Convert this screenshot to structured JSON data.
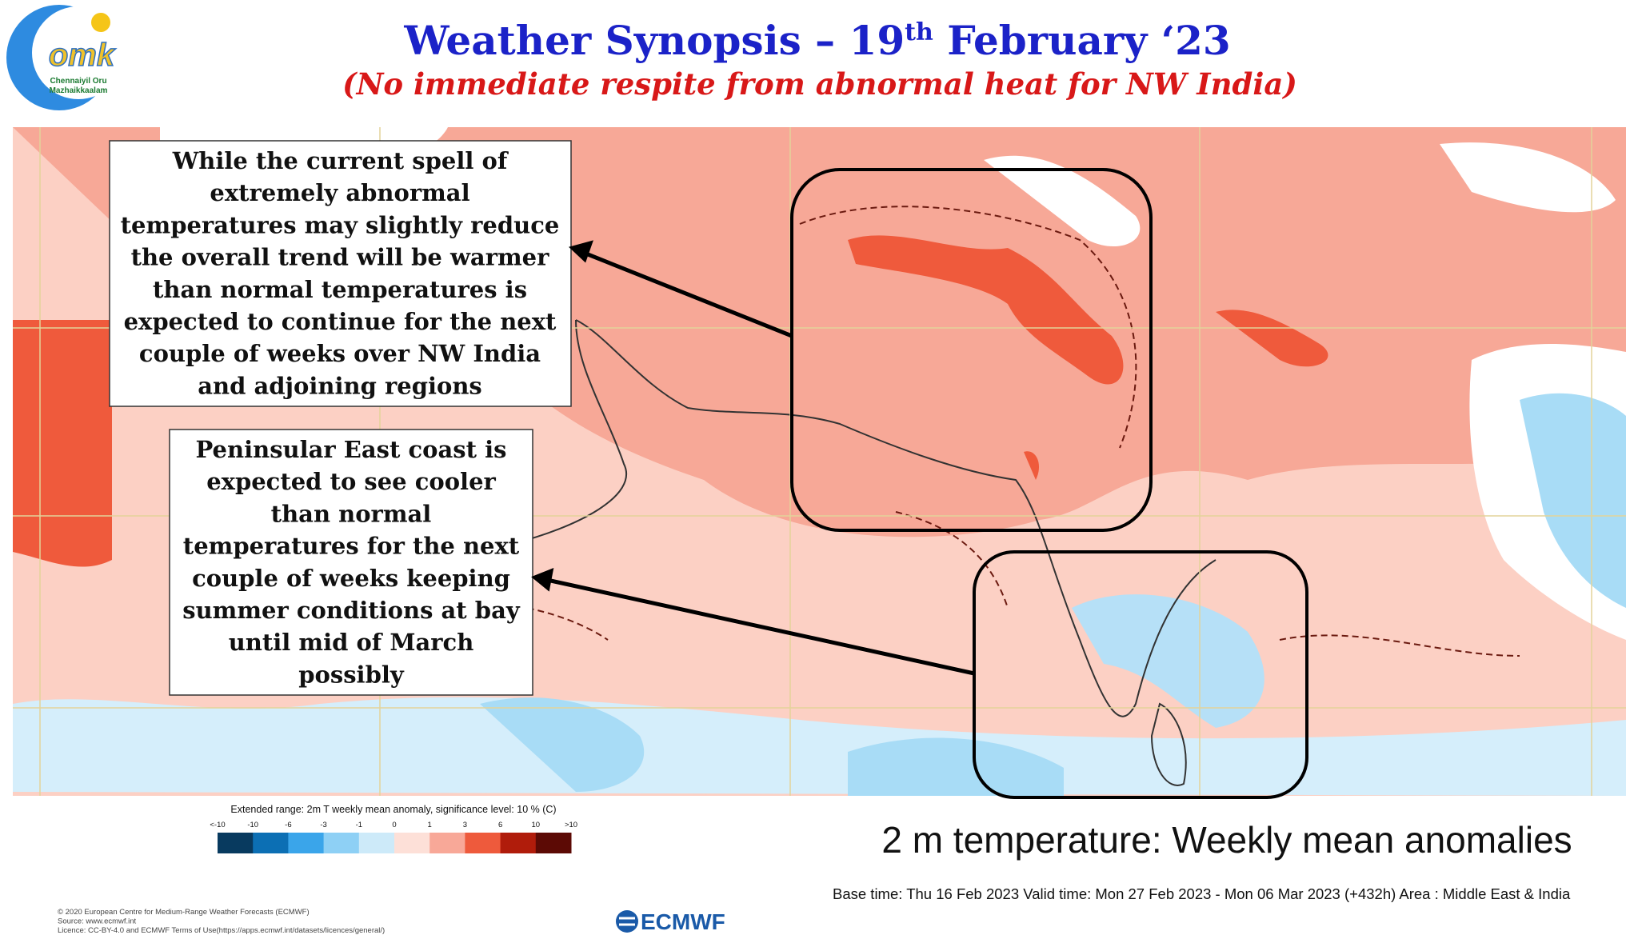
{
  "header": {
    "title_main": "Weather Synopsis – 19",
    "title_sup": "th",
    "title_end": " February ‘23",
    "subtitle": "(No immediate respite from abnormal heat for NW India)"
  },
  "logo": {
    "mark": "omk",
    "line1": "Chennaiyil Oru",
    "line2": "Mazhaikkaalam"
  },
  "callouts": [
    {
      "lines": [
        "While the current spell of",
        "extremely abnormal",
        "temperatures may slightly reduce",
        "the overall trend will be warmer",
        "than normal temperatures is",
        "expected to continue for the next",
        "couple of weeks over NW India",
        "and adjoining regions"
      ]
    },
    {
      "lines": [
        "Peninsular East coast is",
        "expected to see cooler",
        "than normal",
        "temperatures for the next",
        "couple of weeks keeping",
        "summer conditions at bay",
        "until mid of March",
        "possibly"
      ]
    }
  ],
  "legend": {
    "title": "Extended range: 2m T weekly mean anomaly, significance level: 10 % (C)",
    "ticks": [
      "<-10",
      "-10",
      "-6",
      "-3",
      "-1",
      "0",
      "1",
      "3",
      "6",
      "10",
      ">10"
    ],
    "colors": [
      "#083a5f",
      "#0c6fb4",
      "#3aa5ea",
      "#8ed0f5",
      "#cdeaf9",
      "#fde0d8",
      "#f8a898",
      "#ee5a3c",
      "#b01c0b",
      "#5c0a05"
    ]
  },
  "caption": "2 m temperature: Weekly mean anomalies",
  "base_time": "Base time: Thu 16 Feb 2023 Valid time: Mon 27 Feb 2023 - Mon 06 Mar 2023 (+432h) Area : Middle East & India",
  "credits": [
    "© 2020 European Centre for Medium-Range Weather Forecasts (ECMWF)",
    "Source: www.ecmwf.int",
    "Licence: CC-BY-4.0 and ECMWF Terms of Use(https://apps.ecmwf.int/datasets/licences/general/)"
  ],
  "ecmwf": "ECMWF"
}
